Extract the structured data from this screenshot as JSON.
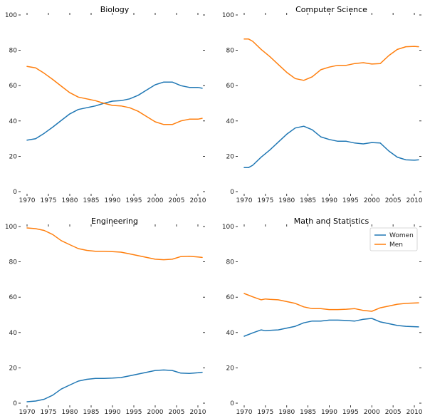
{
  "colors": {
    "women": "#1f77b4",
    "men": "#ff7f0e"
  },
  "legend": {
    "placement": "upper-right",
    "panel": 3,
    "items": [
      "Women",
      "Men"
    ]
  },
  "chart_data": [
    {
      "type": "line",
      "title": "Biology",
      "xlim": [
        1970,
        2011
      ],
      "ylim": [
        0,
        100
      ],
      "x_ticks": [
        1970,
        1975,
        1980,
        1985,
        1990,
        1995,
        2000,
        2005,
        2010
      ],
      "y_ticks": [
        0,
        20,
        40,
        60,
        80,
        100
      ],
      "grid": false,
      "x": [
        1970,
        1972,
        1974,
        1976,
        1978,
        1980,
        1982,
        1984,
        1986,
        1988,
        1990,
        1992,
        1994,
        1996,
        1998,
        2000,
        2002,
        2004,
        2006,
        2008,
        2010,
        2011
      ],
      "series": [
        {
          "name": "Women",
          "values": [
            29.1,
            29.9,
            33.0,
            36.5,
            40.3,
            44.0,
            46.5,
            47.5,
            48.5,
            50.0,
            51.2,
            51.5,
            52.5,
            54.5,
            57.5,
            60.5,
            62.0,
            62.0,
            60.0,
            59.0,
            59.0,
            58.5
          ]
        },
        {
          "name": "Men",
          "values": [
            70.9,
            70.1,
            67.0,
            63.5,
            59.7,
            56.0,
            53.5,
            52.5,
            51.5,
            50.0,
            48.8,
            48.5,
            47.5,
            45.5,
            42.5,
            39.5,
            38.0,
            38.0,
            40.0,
            41.0,
            41.0,
            41.5
          ]
        }
      ]
    },
    {
      "type": "line",
      "title": "Computer Science",
      "xlim": [
        1970,
        2011
      ],
      "ylim": [
        0,
        100
      ],
      "x_ticks": [
        1970,
        1975,
        1980,
        1985,
        1990,
        1995,
        2000,
        2005,
        2010
      ],
      "y_ticks": [
        0,
        20,
        40,
        60,
        80,
        100
      ],
      "grid": false,
      "x": [
        1970,
        1971,
        1972,
        1974,
        1976,
        1978,
        1980,
        1982,
        1984,
        1986,
        1988,
        1990,
        1992,
        1994,
        1996,
        1998,
        2000,
        2002,
        2004,
        2006,
        2008,
        2010,
        2011
      ],
      "series": [
        {
          "name": "Women",
          "values": [
            13.6,
            13.6,
            14.9,
            19.5,
            23.5,
            28.0,
            32.5,
            36.0,
            37.0,
            35.0,
            31.0,
            29.5,
            28.5,
            28.5,
            27.5,
            27.0,
            27.8,
            27.5,
            23.0,
            19.5,
            18.0,
            17.8,
            18.0
          ]
        },
        {
          "name": "Men",
          "values": [
            86.4,
            86.4,
            85.1,
            80.5,
            76.5,
            72.0,
            67.5,
            64.0,
            63.0,
            65.0,
            69.0,
            70.5,
            71.5,
            71.5,
            72.5,
            73.0,
            72.2,
            72.5,
            77.0,
            80.5,
            82.0,
            82.2,
            82.0
          ]
        }
      ]
    },
    {
      "type": "line",
      "title": "Engineering",
      "xlim": [
        1970,
        2011
      ],
      "ylim": [
        0,
        100
      ],
      "x_ticks": [
        1970,
        1975,
        1980,
        1985,
        1990,
        1995,
        2000,
        2005,
        2010
      ],
      "y_ticks": [
        0,
        20,
        40,
        60,
        80,
        100
      ],
      "grid": false,
      "x": [
        1970,
        1972,
        1974,
        1976,
        1978,
        1980,
        1982,
        1984,
        1986,
        1988,
        1990,
        1992,
        1994,
        1996,
        1998,
        2000,
        2002,
        2004,
        2006,
        2008,
        2010,
        2011
      ],
      "series": [
        {
          "name": "Women",
          "values": [
            0.8,
            1.2,
            2.2,
            4.5,
            8.0,
            10.3,
            12.5,
            13.5,
            14.0,
            14.0,
            14.2,
            14.5,
            15.5,
            16.5,
            17.5,
            18.5,
            18.8,
            18.5,
            17.0,
            16.8,
            17.2,
            17.5
          ]
        },
        {
          "name": "Men",
          "values": [
            99.2,
            98.8,
            97.8,
            95.5,
            92.0,
            89.7,
            87.5,
            86.5,
            86.0,
            86.0,
            85.8,
            85.5,
            84.5,
            83.5,
            82.5,
            81.5,
            81.2,
            81.5,
            83.0,
            83.2,
            82.8,
            82.5
          ]
        }
      ]
    },
    {
      "type": "line",
      "title": "Math and Statistics",
      "xlim": [
        1970,
        2011
      ],
      "ylim": [
        0,
        100
      ],
      "x_ticks": [
        1970,
        1975,
        1980,
        1985,
        1990,
        1995,
        2000,
        2005,
        2010
      ],
      "y_ticks": [
        0,
        20,
        40,
        60,
        80,
        100
      ],
      "grid": false,
      "x": [
        1970,
        1972,
        1974,
        1975,
        1976,
        1978,
        1980,
        1982,
        1984,
        1986,
        1988,
        1990,
        1992,
        1994,
        1996,
        1998,
        2000,
        2002,
        2004,
        2006,
        2008,
        2010,
        2011
      ],
      "series": [
        {
          "name": "Women",
          "values": [
            37.9,
            39.8,
            41.5,
            41.0,
            41.2,
            41.5,
            42.5,
            43.5,
            45.5,
            46.5,
            46.5,
            47.0,
            47.0,
            46.8,
            46.5,
            47.5,
            48.0,
            46.0,
            45.0,
            44.0,
            43.5,
            43.3,
            43.2
          ]
        },
        {
          "name": "Men",
          "values": [
            62.1,
            60.2,
            58.5,
            59.0,
            58.8,
            58.5,
            57.5,
            56.5,
            54.5,
            53.5,
            53.5,
            53.0,
            53.0,
            53.2,
            53.5,
            52.5,
            52.0,
            54.0,
            55.0,
            56.0,
            56.5,
            56.7,
            56.8
          ]
        }
      ]
    }
  ]
}
